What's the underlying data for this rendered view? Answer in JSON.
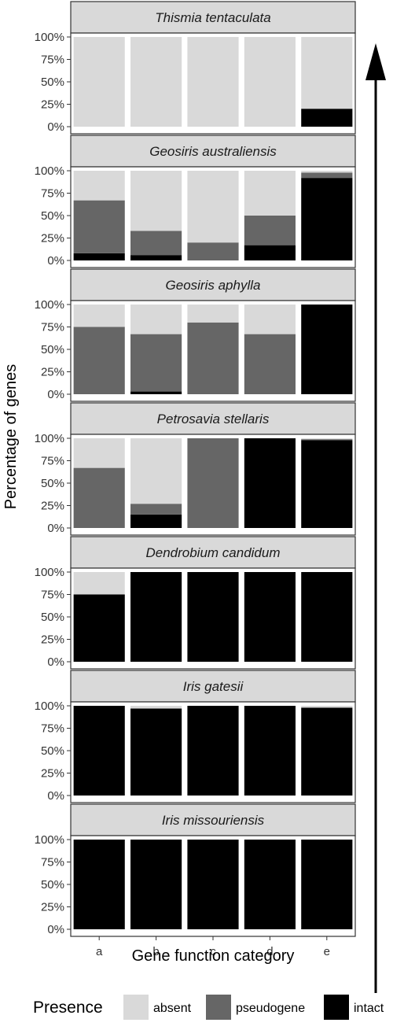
{
  "chart_data": {
    "type": "bar",
    "stacked": true,
    "categories": [
      "a",
      "b",
      "c",
      "d",
      "e"
    ],
    "xlabel": "Gene function category",
    "ylabel": "Percentage of genes",
    "ylim": [
      0,
      100
    ],
    "yticks": [
      "0%",
      "25%",
      "50%",
      "75%",
      "100%"
    ],
    "legend": {
      "title": "Presence",
      "position": "bottom",
      "items": [
        {
          "key": "absent",
          "label": "absent",
          "color": "#d9d9d9"
        },
        {
          "key": "pseudogene",
          "label": "pseudogene",
          "color": "#666666"
        },
        {
          "key": "intact",
          "label": "intact",
          "color": "#000000"
        }
      ]
    },
    "panels": [
      {
        "title": "Thismia tentaculata",
        "intact": [
          0,
          0,
          0,
          0,
          20
        ],
        "pseudogene": [
          0,
          0,
          0,
          0,
          0
        ]
      },
      {
        "title": "Geosiris australiensis",
        "intact": [
          8,
          6,
          0,
          17,
          92
        ],
        "pseudogene": [
          59,
          27,
          20,
          33,
          6
        ]
      },
      {
        "title": "Geosiris aphylla",
        "intact": [
          0,
          3,
          0,
          0,
          100
        ],
        "pseudogene": [
          75,
          64,
          80,
          67,
          0
        ]
      },
      {
        "title": "Petrosavia stellaris",
        "intact": [
          0,
          15,
          0,
          100,
          98
        ],
        "pseudogene": [
          67,
          12,
          100,
          0,
          1
        ]
      },
      {
        "title": "Dendrobium candidum",
        "intact": [
          75,
          100,
          100,
          100,
          100
        ],
        "pseudogene": [
          0,
          0,
          0,
          0,
          0
        ]
      },
      {
        "title": "Iris gatesii",
        "intact": [
          100,
          97,
          100,
          100,
          98
        ],
        "pseudogene": [
          0,
          0,
          0,
          0,
          0
        ]
      },
      {
        "title": "Iris missouriensis",
        "intact": [
          100,
          100,
          100,
          100,
          100
        ],
        "pseudogene": [
          0,
          0,
          0,
          0,
          0
        ]
      }
    ],
    "grid": false
  }
}
